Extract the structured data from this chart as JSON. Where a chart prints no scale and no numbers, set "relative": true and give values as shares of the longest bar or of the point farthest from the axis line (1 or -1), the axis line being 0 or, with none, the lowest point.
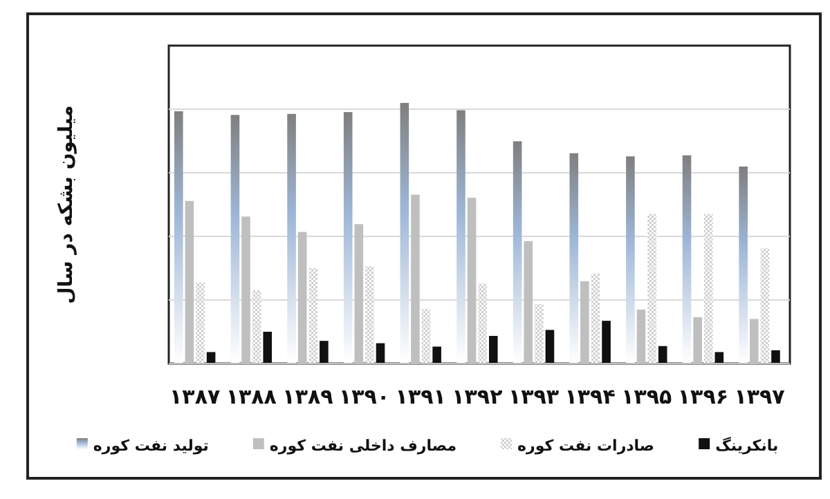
{
  "chart_data": {
    "type": "bar",
    "relative": true,
    "grid": "y",
    "legend": "bottom",
    "ylabel": "میلیون بشکه در سال",
    "categories": [
      "۱۳۸۷",
      "۱۳۸۸",
      "۱۳۸۹",
      "۱۳۹۰",
      "۱۳۹۱",
      "۱۳۹۲",
      "۱۳۹۳",
      "۱۳۹۴",
      "۱۳۹۵",
      "۱۳۹۶",
      "۱۳۹۷"
    ],
    "series": [
      {
        "name": "تولید  نفت کوره",
        "color": "#9db6d6",
        "values": [
          0.968,
          0.954,
          0.958,
          0.965,
          1,
          0.972,
          0.853,
          0.807,
          0.795,
          0.799,
          0.756
        ]
      },
      {
        "name": "مصارف داخلی نفت کوره",
        "color": "#bfbfbf",
        "values": [
          0.624,
          0.564,
          0.505,
          0.535,
          0.648,
          0.636,
          0.47,
          0.316,
          0.207,
          0.178,
          0.171
        ]
      },
      {
        "name": "صادرات نفت کوره",
        "color": "#cfcfcf",
        "values": [
          0.311,
          0.281,
          0.366,
          0.373,
          0.21,
          0.307,
          0.228,
          0.345,
          0.574,
          0.574,
          0.442
        ]
      },
      {
        "name": "بانکرینگ",
        "color": "#111111",
        "values": [
          0.044,
          0.122,
          0.087,
          0.078,
          0.065,
          0.106,
          0.129,
          0.164,
          0.067,
          0.044,
          0.051
        ]
      }
    ]
  }
}
